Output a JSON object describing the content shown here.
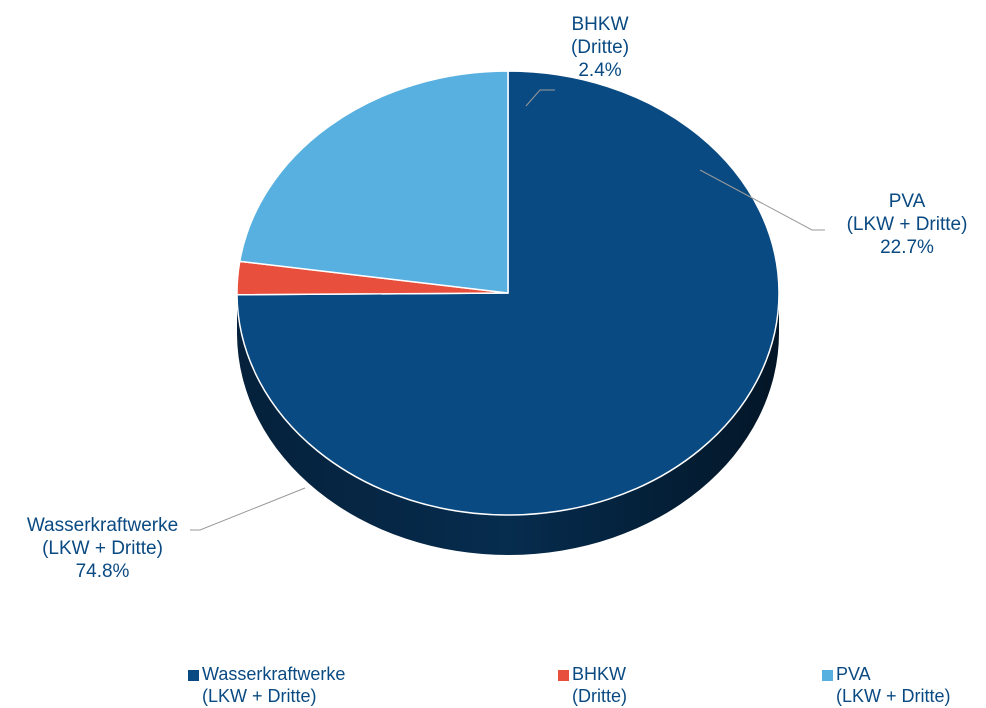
{
  "chart_data": {
    "type": "pie",
    "style": "3d",
    "title": "",
    "series": [
      {
        "slices": [
          {
            "label": "Wasserkraftwerke",
            "sublabel": "(LKW + Dritte)",
            "value": 74.8,
            "value_text": "74.8%",
            "color": "#0a4a82"
          },
          {
            "label": "BHKW",
            "sublabel": "(Dritte)",
            "value": 2.4,
            "value_text": "2.4%",
            "color": "#e84f3c"
          },
          {
            "label": "PVA",
            "sublabel": "(LKW + Dritte)",
            "value": 22.7,
            "value_text": "22.7%",
            "color": "#58b0e0"
          }
        ]
      }
    ],
    "legend_position": "bottom"
  }
}
